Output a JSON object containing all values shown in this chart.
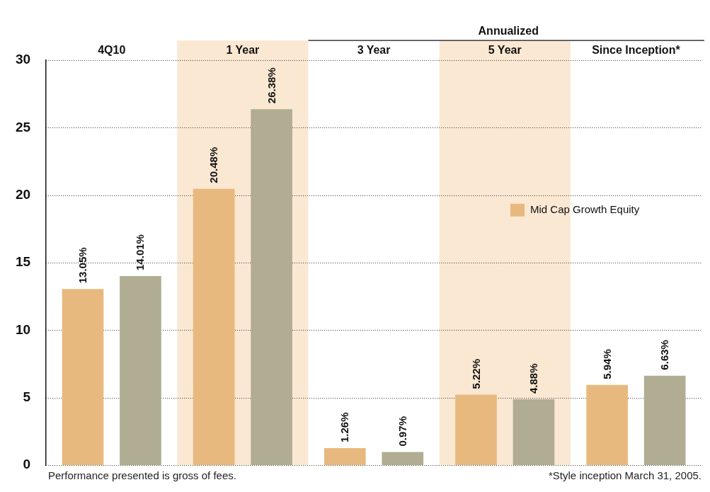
{
  "chart_data": {
    "type": "bar",
    "categories": [
      "4Q10",
      "1 Year",
      "3 Year",
      "5 Year",
      "Since Inception*"
    ],
    "series": [
      {
        "name": "Mid Cap Growth Equity",
        "color": "#e8b97e",
        "values": [
          13.05,
          20.48,
          1.26,
          5.22,
          5.94
        ],
        "value_labels": [
          "13.05%",
          "20.48%",
          "1.26%",
          "5.22%",
          "5.94%"
        ]
      },
      {
        "color": "#b1ad92",
        "values": [
          14.01,
          26.38,
          0.97,
          4.88,
          6.63
        ],
        "value_labels": [
          "14.01%",
          "26.38%",
          "0.97%",
          "4.88%",
          "6.63%"
        ]
      }
    ],
    "ylim": [
      0,
      30
    ],
    "yticks": [
      0,
      5,
      10,
      15,
      20,
      25,
      30
    ],
    "grid": "y",
    "legend": "right",
    "bands": [
      {
        "axis": "x",
        "from": "1 Year",
        "to": "1 Year",
        "color": "#fbe8d3"
      },
      {
        "axis": "x",
        "from": "5 Year",
        "to": "5 Year",
        "color": "#fbe8d3"
      }
    ],
    "annotations": [
      "Annualized",
      "Performance presented is gross of fees.",
      "*Style inception March 31, 2005."
    ]
  }
}
